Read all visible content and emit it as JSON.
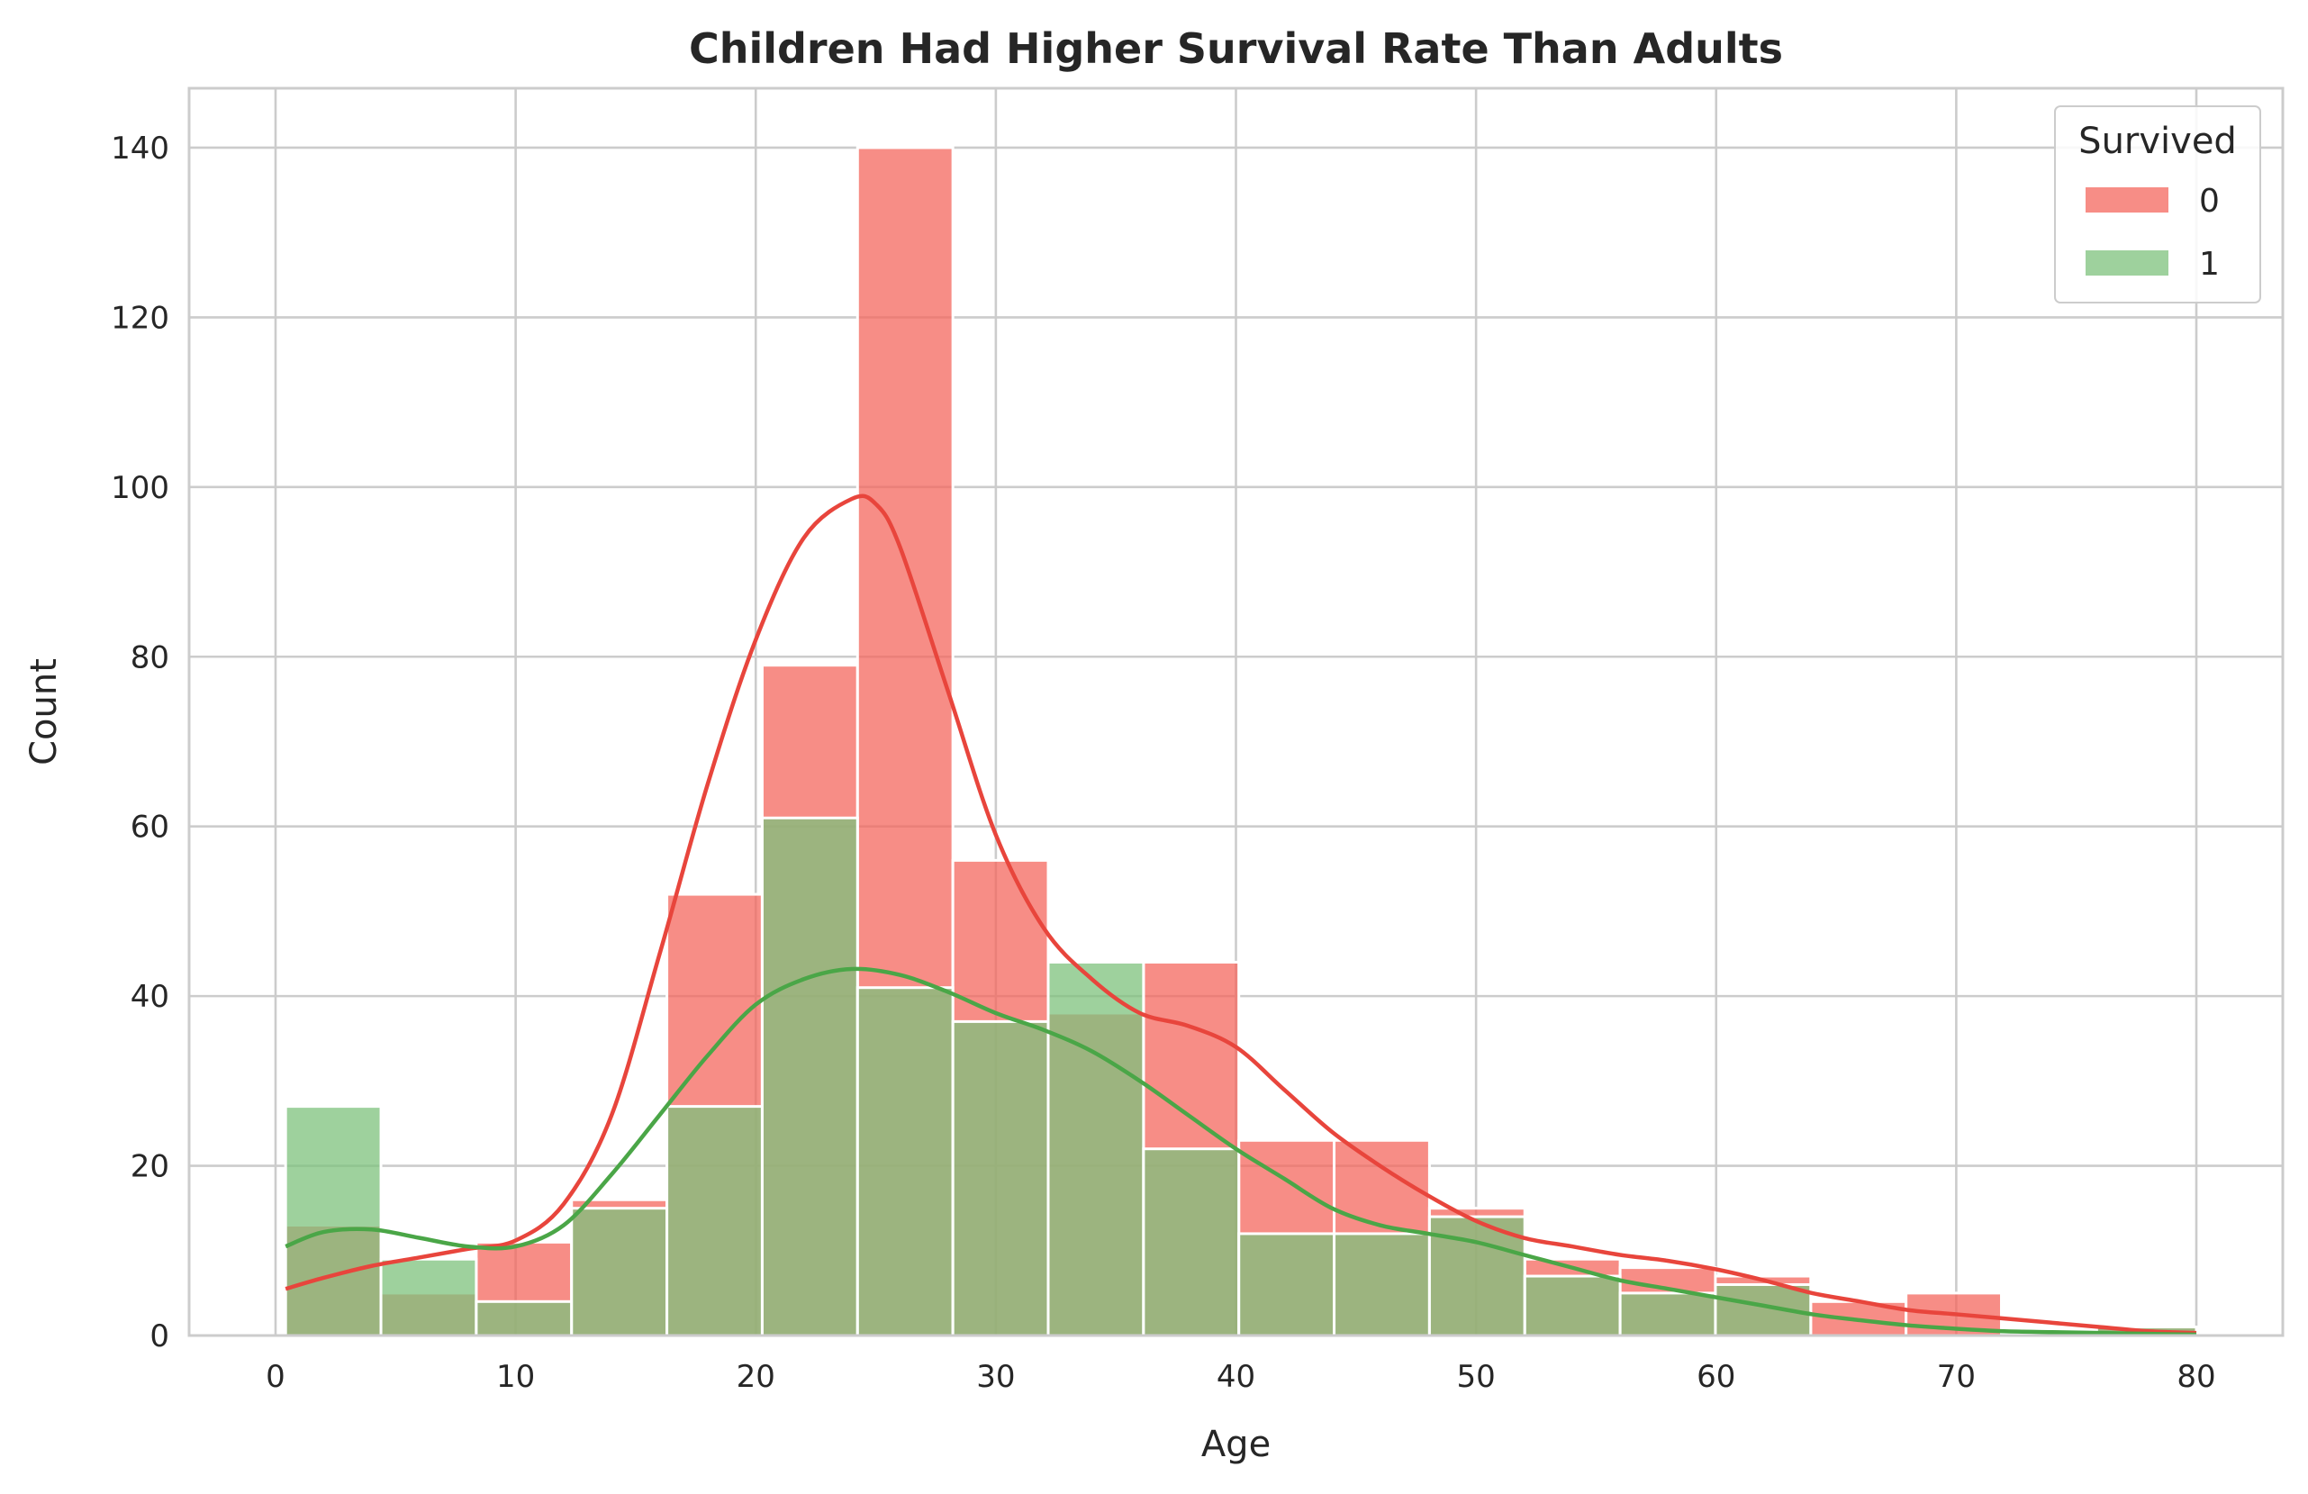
{
  "chart_data": {
    "type": "histogram",
    "title": "Children Had Higher Survival Rate Than Adults",
    "xlabel": "Age",
    "ylabel": "Count",
    "xlim": [
      -3.6,
      83.6
    ],
    "ylim": [
      0,
      147
    ],
    "xticks": [
      0,
      10,
      20,
      30,
      40,
      50,
      60,
      70,
      80
    ],
    "yticks": [
      0,
      20,
      40,
      60,
      80,
      100,
      120,
      140
    ],
    "grid": true,
    "legend": {
      "title": "Survived",
      "placement": "top-right",
      "entries": [
        "0",
        "1"
      ]
    },
    "bin_edges": [
      0.42,
      4.39,
      8.36,
      12.33,
      16.3,
      20.27,
      24.24,
      28.21,
      32.18,
      36.15,
      40.12,
      44.09,
      48.06,
      52.03,
      56.0,
      59.97,
      63.94,
      67.91,
      71.88,
      75.85,
      80.0
    ],
    "series": [
      {
        "name": "0",
        "color": "#f4675e",
        "line_color": "#e8453c",
        "counts": [
          13,
          5,
          11,
          16,
          52,
          79,
          140,
          56,
          38,
          44,
          23,
          23,
          15,
          9,
          8,
          7,
          4,
          5,
          0,
          1
        ],
        "kde": {
          "x": [
            0.42,
            2,
            4,
            6,
            8,
            10,
            12,
            14,
            16,
            18,
            20,
            22,
            24,
            25,
            26,
            28,
            30,
            32,
            34,
            36,
            38,
            40,
            42,
            44,
            46,
            48,
            50,
            52,
            54,
            56,
            58,
            60,
            62,
            64,
            66,
            68,
            70,
            72,
            74,
            76,
            78,
            80
          ],
          "y": [
            5.5,
            6.8,
            8.2,
            9.2,
            10.2,
            11.2,
            15.5,
            26,
            45,
            65,
            82,
            94,
            98.6,
            98,
            93,
            76,
            59,
            48,
            42,
            38,
            36.5,
            34,
            29,
            24,
            20,
            16.5,
            13.5,
            11.5,
            10.5,
            9.5,
            8.8,
            7.8,
            6.5,
            5,
            4,
            3,
            2.5,
            2,
            1.5,
            1,
            0.5,
            0.3
          ]
        }
      },
      {
        "name": "1",
        "color": "#7dc27c",
        "line_color": "#4aa647",
        "counts": [
          27,
          9,
          4,
          15,
          27,
          61,
          41,
          37,
          44,
          22,
          12,
          12,
          14,
          7,
          5,
          6,
          0,
          0,
          0,
          1
        ],
        "kde": {
          "x": [
            0.42,
            2,
            4,
            6,
            8,
            10,
            12,
            14,
            16,
            18,
            20,
            22,
            24,
            26,
            28,
            30,
            32,
            34,
            36,
            38,
            40,
            42,
            44,
            46,
            48,
            50,
            52,
            54,
            56,
            58,
            60,
            62,
            64,
            66,
            68,
            70,
            72,
            74,
            76,
            78,
            80
          ],
          "y": [
            10.5,
            12.2,
            12.5,
            11.5,
            10.5,
            10.5,
            13,
            19,
            26,
            33,
            39,
            42,
            43.2,
            42.5,
            40.5,
            38,
            36,
            33.5,
            30,
            26,
            22,
            18.5,
            15,
            13,
            12,
            11,
            9.5,
            8,
            6.5,
            5.5,
            4.5,
            3.5,
            2.5,
            1.8,
            1.2,
            0.8,
            0.5,
            0.4,
            0.3,
            0.2,
            0.1
          ]
        }
      }
    ]
  }
}
